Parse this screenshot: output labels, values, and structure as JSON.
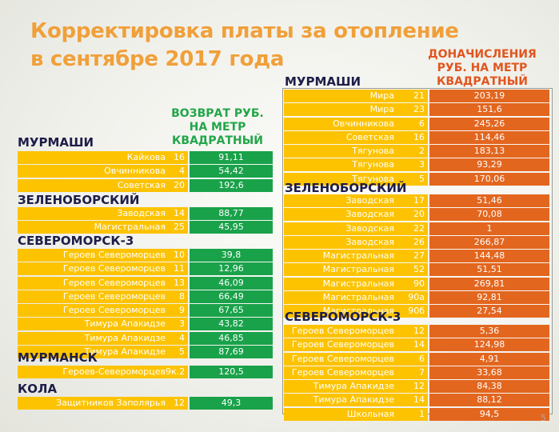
{
  "title": {
    "line1": "Корректировка платы за отопление",
    "line2": "в сентябре 2017 года"
  },
  "refund_header": [
    "ВОЗВРАТ РУБ.",
    "НА МЕТР",
    "КВАДРАТНЫЙ"
  ],
  "charge_header": [
    "ДОНАЧИСЛЕНИЯ",
    "РУБ. НА МЕТР",
    "КВАДРАТНЫЙ"
  ],
  "refund_sections": [
    {
      "name": "МУРМАШИ",
      "rows": [
        {
          "street": "Кайкова",
          "num": "16",
          "value": "91,11"
        },
        {
          "street": "Овчинникова",
          "num": "4",
          "value": "54,42"
        },
        {
          "street": "Советская",
          "num": "20",
          "value": "192,6"
        }
      ]
    },
    {
      "name": "ЗЕЛЕНОБОРСКИЙ",
      "rows": [
        {
          "street": "Заводская",
          "num": "14",
          "value": "88,77"
        },
        {
          "street": "Магистральная",
          "num": "25",
          "value": "45,95"
        }
      ]
    },
    {
      "name": "СЕВЕРОМОРСК-3",
      "rows": [
        {
          "street": "Героев Североморцев",
          "num": "10",
          "value": "39,8"
        },
        {
          "street": "Героев Североморцев",
          "num": "11",
          "value": "12,96"
        },
        {
          "street": "Героев Североморцев",
          "num": "13",
          "value": "46,09"
        },
        {
          "street": "Героев Североморцев",
          "num": "8",
          "value": "66,49"
        },
        {
          "street": "Героев Североморцев",
          "num": "9",
          "value": "67,65"
        },
        {
          "street": "Тимура Апакидзе",
          "num": "3",
          "value": "43,82"
        },
        {
          "street": "Тимура Апакидзе",
          "num": "4",
          "value": "46,85"
        },
        {
          "street": "Тимура Апакидзе",
          "num": "5",
          "value": "87,69"
        }
      ]
    },
    {
      "name": "МУРМАНСК",
      "rows": [
        {
          "street": "Героев-Североморцев",
          "num": "9к.2",
          "value": "120,5"
        }
      ]
    },
    {
      "name": "КОЛА",
      "rows": [
        {
          "street": "Защитников Заполярья",
          "num": "12",
          "value": "49,3"
        }
      ]
    }
  ],
  "charge_sections": [
    {
      "name": "МУРМАШИ",
      "rows": [
        {
          "street": "Мира",
          "num": "21",
          "value": "203,19"
        },
        {
          "street": "Мира",
          "num": "23",
          "value": "151,6"
        },
        {
          "street": "Овчинникова",
          "num": "6",
          "value": "245,26"
        },
        {
          "street": "Советская",
          "num": "16",
          "value": "114,46"
        },
        {
          "street": "Тягунова",
          "num": "2",
          "value": "183,13"
        },
        {
          "street": "Тягунова",
          "num": "3",
          "value": "93,29"
        },
        {
          "street": "Тягунова",
          "num": "5",
          "value": "170,06"
        }
      ]
    },
    {
      "name": "ЗЕЛЕНОБОРСКИЙ",
      "rows": [
        {
          "street": "Заводская",
          "num": "17",
          "value": "51,46"
        },
        {
          "street": "Заводская",
          "num": "20",
          "value": "70,08"
        },
        {
          "street": "Заводская",
          "num": "22",
          "value": "1"
        },
        {
          "street": "Заводская",
          "num": "26",
          "value": "266,87"
        },
        {
          "street": "Магистральная",
          "num": "27",
          "value": "144,48"
        },
        {
          "street": "Магистральная",
          "num": "52",
          "value": "51,51"
        },
        {
          "street": "Магистральная",
          "num": "90",
          "value": "269,81"
        },
        {
          "street": "Магистральная",
          "num": "90а",
          "value": "92,81"
        },
        {
          "street": "Магистральная",
          "num": "90б",
          "value": "27,54"
        }
      ]
    },
    {
      "name": "СЕВЕРОМОРСК-3",
      "rows": [
        {
          "street": "Героев Североморцев",
          "num": "12",
          "value": "5,36"
        },
        {
          "street": "Героев Североморцев",
          "num": "14",
          "value": "124,98"
        },
        {
          "street": "Героев Североморцев",
          "num": "6",
          "value": "4,91"
        },
        {
          "street": "Героев Североморцев",
          "num": "7",
          "value": "33,68"
        },
        {
          "street": "Тимура Апакидзе",
          "num": "12",
          "value": "84,38"
        },
        {
          "street": "Тимура Апакидзе",
          "num": "14",
          "value": "88,12"
        },
        {
          "street": "Школьная",
          "num": "1",
          "value": "94,5"
        }
      ]
    }
  ],
  "slide_number": "5",
  "colors": {
    "title": "#f0a03a",
    "street_cell": "#fdc300",
    "refund_cell": "#19a24a",
    "charge_cell": "#e3661f",
    "section_title": "#1e1e4a"
  }
}
